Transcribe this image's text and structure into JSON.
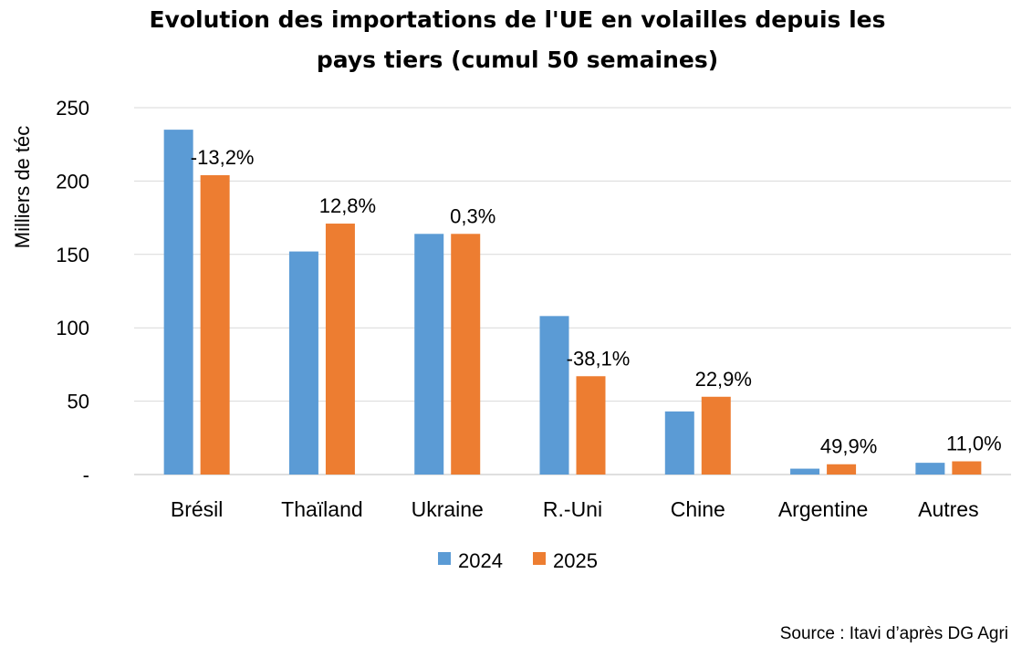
{
  "chart_data": {
    "type": "bar",
    "title_line1": "Evolution des importations de l'UE en volailles depuis les",
    "title_line2": "pays tiers (cumul 50 semaines)",
    "ylabel": "Milliers de téc",
    "xlabel": "",
    "ylim": [
      0,
      250
    ],
    "yticks": [
      "-",
      "50",
      "100",
      "150",
      "200",
      "250"
    ],
    "grid": true,
    "legend_position": "bottom",
    "categories": [
      "Brésil",
      "Thaïland",
      "Ukraine",
      "R.-Uni",
      "Chine",
      "Argentine",
      "Autres"
    ],
    "series": [
      {
        "name": "2024",
        "color": "#5B9BD5",
        "values": [
          235,
          152,
          164,
          108,
          43,
          4,
          8
        ]
      },
      {
        "name": "2025",
        "color": "#ED7D31",
        "values": [
          204,
          171,
          164,
          67,
          53,
          7,
          9
        ]
      }
    ],
    "change_labels": [
      "-13,2%",
      "12,8%",
      "0,3%",
      "-38,1%",
      "22,9%",
      "49,9%",
      "11,0%"
    ],
    "source": "Source : Itavi d’après DG Agri"
  }
}
